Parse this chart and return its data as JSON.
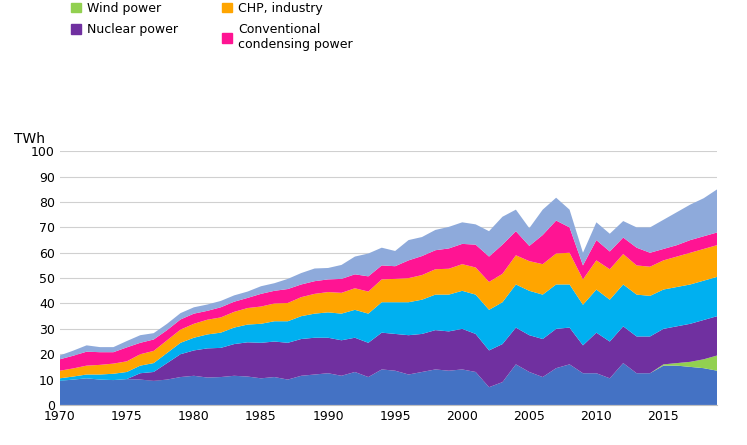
{
  "years": [
    1970,
    1971,
    1972,
    1973,
    1974,
    1975,
    1976,
    1977,
    1978,
    1979,
    1980,
    1981,
    1982,
    1983,
    1984,
    1985,
    1986,
    1987,
    1988,
    1989,
    1990,
    1991,
    1992,
    1993,
    1994,
    1995,
    1996,
    1997,
    1998,
    1999,
    2000,
    2001,
    2002,
    2003,
    2004,
    2005,
    2006,
    2007,
    2008,
    2009,
    2010,
    2011,
    2012,
    2013,
    2014,
    2015,
    2016,
    2017,
    2018,
    2019
  ],
  "hydro": [
    9.5,
    10.0,
    10.5,
    10.0,
    9.8,
    10.2,
    10.0,
    9.5,
    10.0,
    11.0,
    11.5,
    10.8,
    11.0,
    11.5,
    11.2,
    10.5,
    11.0,
    10.0,
    11.5,
    12.0,
    12.5,
    11.5,
    13.0,
    11.0,
    14.0,
    13.5,
    12.0,
    13.0,
    14.0,
    13.5,
    14.0,
    13.0,
    7.0,
    9.0,
    16.0,
    13.0,
    11.0,
    14.5,
    16.0,
    12.5,
    12.5,
    10.5,
    16.5,
    12.5,
    12.5,
    15.5,
    15.5,
    15.0,
    14.5,
    13.5
  ],
  "wind": [
    0,
    0,
    0,
    0,
    0,
    0,
    0,
    0,
    0,
    0,
    0,
    0,
    0,
    0,
    0,
    0,
    0,
    0,
    0,
    0,
    0,
    0,
    0,
    0,
    0,
    0,
    0,
    0,
    0,
    0,
    0,
    0,
    0,
    0,
    0,
    0,
    0,
    0,
    0,
    0,
    0,
    0,
    0,
    0,
    0,
    0.5,
    1.0,
    2.0,
    3.5,
    6.0
  ],
  "nuclear": [
    0,
    0,
    0,
    0,
    0,
    0,
    2.5,
    3.5,
    6.5,
    9.0,
    10.0,
    11.5,
    11.5,
    12.5,
    13.5,
    14.0,
    14.0,
    14.5,
    14.5,
    14.5,
    14.0,
    14.0,
    13.5,
    13.5,
    14.5,
    14.5,
    15.5,
    15.0,
    15.5,
    15.5,
    16.0,
    15.0,
    14.5,
    15.0,
    14.5,
    14.5,
    15.0,
    15.5,
    14.5,
    11.0,
    16.0,
    14.5,
    14.5,
    14.5,
    14.5,
    14.0,
    14.5,
    15.0,
    15.5,
    15.5
  ],
  "chp_district": [
    1.0,
    1.2,
    1.5,
    2.0,
    2.5,
    2.8,
    3.0,
    3.5,
    4.0,
    4.5,
    5.0,
    5.5,
    6.0,
    6.5,
    7.0,
    7.5,
    8.0,
    8.5,
    9.0,
    9.5,
    10.0,
    10.5,
    11.0,
    11.5,
    12.0,
    12.5,
    13.0,
    13.5,
    14.0,
    14.5,
    15.0,
    15.5,
    16.0,
    16.5,
    17.0,
    17.5,
    17.5,
    17.5,
    17.0,
    16.0,
    17.0,
    16.5,
    16.5,
    16.5,
    16.0,
    15.5,
    15.5,
    15.5,
    15.5,
    15.5
  ],
  "chp_industry": [
    3.0,
    3.2,
    3.5,
    3.8,
    4.0,
    4.2,
    4.5,
    4.8,
    5.0,
    5.2,
    5.5,
    5.8,
    6.0,
    6.2,
    6.5,
    6.8,
    7.0,
    7.2,
    7.5,
    7.8,
    8.0,
    8.2,
    8.5,
    8.7,
    9.0,
    9.2,
    9.5,
    9.7,
    10.0,
    10.2,
    10.5,
    10.7,
    11.0,
    11.2,
    11.5,
    11.7,
    12.0,
    12.2,
    12.5,
    10.0,
    11.5,
    12.0,
    12.0,
    11.5,
    11.5,
    11.5,
    12.0,
    12.5,
    12.5,
    12.5
  ],
  "conventional": [
    4.5,
    5.0,
    5.5,
    5.0,
    4.5,
    5.5,
    4.5,
    4.5,
    4.0,
    4.0,
    4.0,
    3.5,
    4.0,
    4.0,
    4.0,
    5.0,
    5.0,
    5.5,
    5.0,
    5.0,
    5.0,
    5.5,
    5.5,
    6.0,
    5.5,
    5.0,
    7.0,
    7.5,
    7.5,
    8.0,
    8.0,
    9.0,
    10.0,
    11.5,
    9.5,
    6.0,
    11.5,
    13.0,
    10.0,
    5.5,
    8.0,
    7.0,
    6.5,
    7.0,
    5.5,
    4.5,
    4.5,
    5.0,
    5.0,
    5.0
  ],
  "net_imports": [
    1.5,
    2.0,
    2.5,
    2.0,
    2.0,
    2.5,
    3.0,
    2.5,
    2.5,
    2.5,
    2.5,
    2.5,
    2.5,
    2.5,
    2.5,
    3.0,
    3.0,
    4.0,
    4.5,
    5.0,
    4.5,
    5.5,
    7.0,
    9.0,
    7.0,
    6.0,
    8.0,
    7.5,
    8.0,
    8.5,
    8.5,
    8.0,
    10.0,
    11.0,
    8.5,
    7.0,
    10.0,
    9.0,
    7.0,
    5.0,
    7.0,
    7.0,
    6.5,
    8.0,
    10.0,
    11.5,
    13.0,
    14.0,
    15.0,
    17.0
  ],
  "colors": {
    "hydro": "#4472c4",
    "wind": "#92d050",
    "nuclear": "#7030a0",
    "chp_district": "#00b0f0",
    "chp_industry": "#ffa500",
    "conventional": "#ff1493",
    "net_imports": "#8eaadb"
  },
  "ylabel": "TWh",
  "ylim": [
    0,
    100
  ],
  "yticks": [
    0,
    10,
    20,
    30,
    40,
    50,
    60,
    70,
    80,
    90,
    100
  ],
  "xticks": [
    1970,
    1975,
    1980,
    1985,
    1990,
    1995,
    2000,
    2005,
    2010,
    2015
  ]
}
